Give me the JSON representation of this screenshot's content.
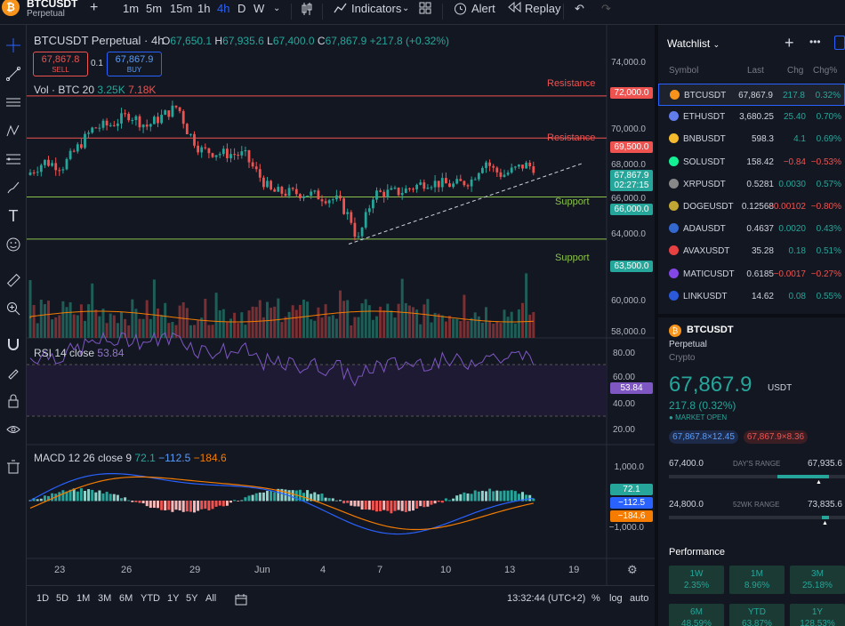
{
  "header": {
    "symbol": "BTCUSDT",
    "sub": "Perpetual",
    "intervals": [
      "1m",
      "5m",
      "15m",
      "1h",
      "4h",
      "D",
      "W"
    ],
    "active_interval": "4h",
    "indicators_label": "Indicators",
    "alert_label": "Alert",
    "replay_label": "Replay"
  },
  "legend": {
    "title": "BTCUSDT Perpetual · 4h",
    "o_label": "O",
    "o": "67,650.1",
    "h_label": "H",
    "h": "67,935.6",
    "l_label": "L",
    "l": "67,400.0",
    "c_label": "C",
    "c": "67,867.9",
    "change": "+217.8 (+0.32%)",
    "sell_price": "67,867.8",
    "sell_label": "SELL",
    "spread": "0.1",
    "buy_price": "67,867.9",
    "buy_label": "BUY",
    "vol_label": "Vol · BTC 20",
    "vol1": "3.25K",
    "vol2": "7.18K"
  },
  "levels": {
    "resistance1": "Resistance",
    "resistance1_price": "72,000.0",
    "resistance2": "Resistance",
    "resistance2_price": "69,500.0",
    "support1": "Support",
    "support1_price": "66,000.0",
    "support2": "Support",
    "support2_price": "63,500.0",
    "last_price": "67,867.9",
    "countdown": "02:27:15"
  },
  "price_axis": [
    "74,000.0",
    "70,000.0",
    "68,000.0",
    "66,000.0",
    "64,000.0",
    "60,000.0",
    "58,000.0"
  ],
  "rsi": {
    "label": "RSI 14 close",
    "value": "53.84",
    "axis": [
      "80.00",
      "60.00",
      "40.00",
      "20.00"
    ]
  },
  "macd": {
    "label": "MACD 12 26 close 9",
    "v1": "72.1",
    "v2": "−112.5",
    "v3": "−184.6",
    "axis": [
      "1,000.0",
      "0.0",
      "−1,000.0"
    ]
  },
  "time_axis": [
    "23",
    "26",
    "29",
    "Jun",
    "4",
    "7",
    "10",
    "13",
    "19"
  ],
  "bottom": {
    "ranges": [
      "1D",
      "5D",
      "1M",
      "3M",
      "6M",
      "YTD",
      "1Y",
      "5Y",
      "All"
    ],
    "time": "13:32:44 (UTC+2)",
    "pct": "%",
    "log": "log",
    "auto": "auto"
  },
  "watchlist": {
    "title": "Watchlist",
    "cols": [
      "Symbol",
      "Last",
      "Chg",
      "Chg%"
    ],
    "rows": [
      {
        "sym": "BTCUSDT",
        "last": "67,867.9",
        "chg": "217.8",
        "pct": "0.32%",
        "dir": "up",
        "color": "#f7931a"
      },
      {
        "sym": "ETHUSDT",
        "last": "3,680.25",
        "chg": "25.40",
        "pct": "0.70%",
        "dir": "up",
        "color": "#627eea"
      },
      {
        "sym": "BNBUSDT",
        "last": "598.3",
        "chg": "4.1",
        "pct": "0.69%",
        "dir": "up",
        "color": "#f3ba2f"
      },
      {
        "sym": "SOLUSDT",
        "last": "158.42",
        "chg": "−0.84",
        "pct": "−0.53%",
        "dir": "down",
        "color": "#14f195"
      },
      {
        "sym": "XRPUSDT",
        "last": "0.5281",
        "chg": "0.0030",
        "pct": "0.57%",
        "dir": "up",
        "color": "#888888"
      },
      {
        "sym": "DOGEUSDT",
        "last": "0.12568",
        "chg": "−0.00102",
        "pct": "−0.80%",
        "dir": "down",
        "color": "#c2a633"
      },
      {
        "sym": "ADAUSDT",
        "last": "0.4637",
        "chg": "0.0020",
        "pct": "0.43%",
        "dir": "up",
        "color": "#3468d1"
      },
      {
        "sym": "AVAXUSDT",
        "last": "35.28",
        "chg": "0.18",
        "pct": "0.51%",
        "dir": "up",
        "color": "#e84142"
      },
      {
        "sym": "MATICUSDT",
        "last": "0.6185",
        "chg": "−0.0017",
        "pct": "−0.27%",
        "dir": "down",
        "color": "#8247e5"
      },
      {
        "sym": "LINKUSDT",
        "last": "14.62",
        "chg": "0.08",
        "pct": "0.55%",
        "dir": "up",
        "color": "#2a5ada"
      }
    ]
  },
  "detail": {
    "symbol": "BTCUSDT",
    "sub": "Perpetual",
    "type": "Crypto",
    "price": "67,867.9",
    "currency": "USDT",
    "change": "217.8 (0.32%)",
    "status": "MARKET OPEN",
    "bid": "67,867.8×12.45",
    "ask": "67,867.9×8.36",
    "day_low": "67,400.0",
    "day_label": "DAY'S RANGE",
    "day_high": "67,935.6",
    "wk_low": "24,800.0",
    "wk_label": "52WK RANGE",
    "wk_high": "73,835.6",
    "perf_title": "Performance",
    "perf": [
      {
        "label": "1W",
        "value": "2.35%"
      },
      {
        "label": "1M",
        "value": "8.96%"
      },
      {
        "label": "3M",
        "value": "25.18%"
      },
      {
        "label": "6M",
        "value": "48.59%"
      },
      {
        "label": "YTD",
        "value": "63.87%"
      },
      {
        "label": "1Y",
        "value": "128.53%"
      }
    ]
  },
  "colors": {
    "up": "#26a69a",
    "down": "#ef5350",
    "accent": "#2962ff",
    "bg": "#131722"
  }
}
